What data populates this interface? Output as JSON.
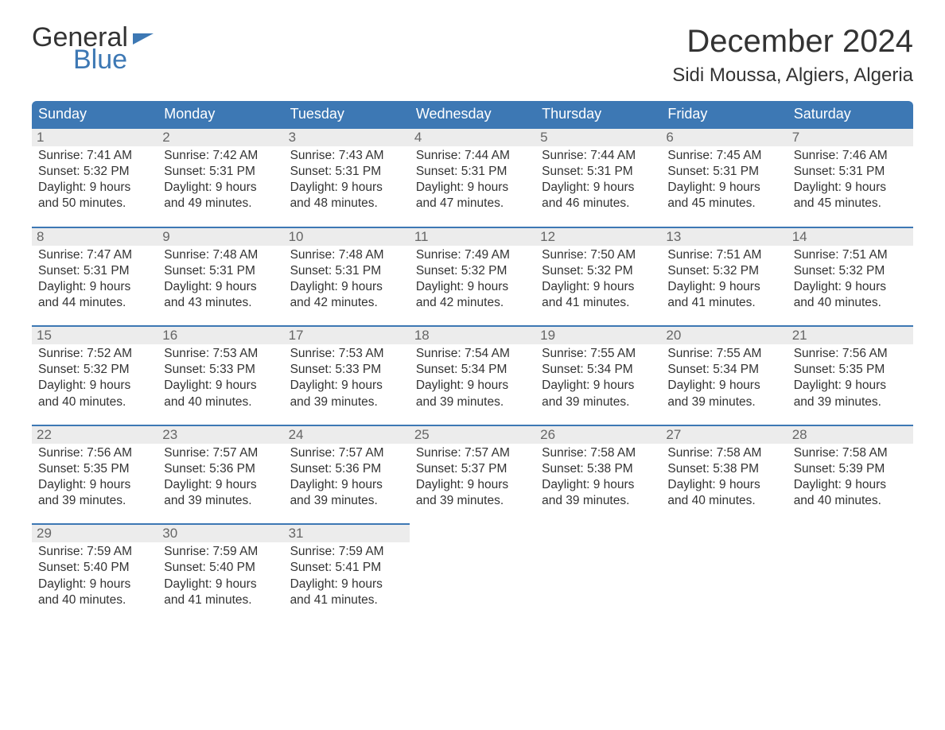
{
  "logo": {
    "word1": "General",
    "word2": "Blue"
  },
  "title": "December 2024",
  "location": "Sidi Moussa, Algiers, Algeria",
  "colors": {
    "header_bg": "#3d78b4",
    "header_text": "#ffffff",
    "daynum_bg": "#ececec",
    "daynum_border": "#3d78b4",
    "daynum_text": "#666666",
    "body_text": "#333333",
    "page_bg": "#ffffff"
  },
  "day_headers": [
    "Sunday",
    "Monday",
    "Tuesday",
    "Wednesday",
    "Thursday",
    "Friday",
    "Saturday"
  ],
  "weeks": [
    [
      {
        "n": "1",
        "sunrise": "Sunrise: 7:41 AM",
        "sunset": "Sunset: 5:32 PM",
        "dl1": "Daylight: 9 hours",
        "dl2": "and 50 minutes."
      },
      {
        "n": "2",
        "sunrise": "Sunrise: 7:42 AM",
        "sunset": "Sunset: 5:31 PM",
        "dl1": "Daylight: 9 hours",
        "dl2": "and 49 minutes."
      },
      {
        "n": "3",
        "sunrise": "Sunrise: 7:43 AM",
        "sunset": "Sunset: 5:31 PM",
        "dl1": "Daylight: 9 hours",
        "dl2": "and 48 minutes."
      },
      {
        "n": "4",
        "sunrise": "Sunrise: 7:44 AM",
        "sunset": "Sunset: 5:31 PM",
        "dl1": "Daylight: 9 hours",
        "dl2": "and 47 minutes."
      },
      {
        "n": "5",
        "sunrise": "Sunrise: 7:44 AM",
        "sunset": "Sunset: 5:31 PM",
        "dl1": "Daylight: 9 hours",
        "dl2": "and 46 minutes."
      },
      {
        "n": "6",
        "sunrise": "Sunrise: 7:45 AM",
        "sunset": "Sunset: 5:31 PM",
        "dl1": "Daylight: 9 hours",
        "dl2": "and 45 minutes."
      },
      {
        "n": "7",
        "sunrise": "Sunrise: 7:46 AM",
        "sunset": "Sunset: 5:31 PM",
        "dl1": "Daylight: 9 hours",
        "dl2": "and 45 minutes."
      }
    ],
    [
      {
        "n": "8",
        "sunrise": "Sunrise: 7:47 AM",
        "sunset": "Sunset: 5:31 PM",
        "dl1": "Daylight: 9 hours",
        "dl2": "and 44 minutes."
      },
      {
        "n": "9",
        "sunrise": "Sunrise: 7:48 AM",
        "sunset": "Sunset: 5:31 PM",
        "dl1": "Daylight: 9 hours",
        "dl2": "and 43 minutes."
      },
      {
        "n": "10",
        "sunrise": "Sunrise: 7:48 AM",
        "sunset": "Sunset: 5:31 PM",
        "dl1": "Daylight: 9 hours",
        "dl2": "and 42 minutes."
      },
      {
        "n": "11",
        "sunrise": "Sunrise: 7:49 AM",
        "sunset": "Sunset: 5:32 PM",
        "dl1": "Daylight: 9 hours",
        "dl2": "and 42 minutes."
      },
      {
        "n": "12",
        "sunrise": "Sunrise: 7:50 AM",
        "sunset": "Sunset: 5:32 PM",
        "dl1": "Daylight: 9 hours",
        "dl2": "and 41 minutes."
      },
      {
        "n": "13",
        "sunrise": "Sunrise: 7:51 AM",
        "sunset": "Sunset: 5:32 PM",
        "dl1": "Daylight: 9 hours",
        "dl2": "and 41 minutes."
      },
      {
        "n": "14",
        "sunrise": "Sunrise: 7:51 AM",
        "sunset": "Sunset: 5:32 PM",
        "dl1": "Daylight: 9 hours",
        "dl2": "and 40 minutes."
      }
    ],
    [
      {
        "n": "15",
        "sunrise": "Sunrise: 7:52 AM",
        "sunset": "Sunset: 5:32 PM",
        "dl1": "Daylight: 9 hours",
        "dl2": "and 40 minutes."
      },
      {
        "n": "16",
        "sunrise": "Sunrise: 7:53 AM",
        "sunset": "Sunset: 5:33 PM",
        "dl1": "Daylight: 9 hours",
        "dl2": "and 40 minutes."
      },
      {
        "n": "17",
        "sunrise": "Sunrise: 7:53 AM",
        "sunset": "Sunset: 5:33 PM",
        "dl1": "Daylight: 9 hours",
        "dl2": "and 39 minutes."
      },
      {
        "n": "18",
        "sunrise": "Sunrise: 7:54 AM",
        "sunset": "Sunset: 5:34 PM",
        "dl1": "Daylight: 9 hours",
        "dl2": "and 39 minutes."
      },
      {
        "n": "19",
        "sunrise": "Sunrise: 7:55 AM",
        "sunset": "Sunset: 5:34 PM",
        "dl1": "Daylight: 9 hours",
        "dl2": "and 39 minutes."
      },
      {
        "n": "20",
        "sunrise": "Sunrise: 7:55 AM",
        "sunset": "Sunset: 5:34 PM",
        "dl1": "Daylight: 9 hours",
        "dl2": "and 39 minutes."
      },
      {
        "n": "21",
        "sunrise": "Sunrise: 7:56 AM",
        "sunset": "Sunset: 5:35 PM",
        "dl1": "Daylight: 9 hours",
        "dl2": "and 39 minutes."
      }
    ],
    [
      {
        "n": "22",
        "sunrise": "Sunrise: 7:56 AM",
        "sunset": "Sunset: 5:35 PM",
        "dl1": "Daylight: 9 hours",
        "dl2": "and 39 minutes."
      },
      {
        "n": "23",
        "sunrise": "Sunrise: 7:57 AM",
        "sunset": "Sunset: 5:36 PM",
        "dl1": "Daylight: 9 hours",
        "dl2": "and 39 minutes."
      },
      {
        "n": "24",
        "sunrise": "Sunrise: 7:57 AM",
        "sunset": "Sunset: 5:36 PM",
        "dl1": "Daylight: 9 hours",
        "dl2": "and 39 minutes."
      },
      {
        "n": "25",
        "sunrise": "Sunrise: 7:57 AM",
        "sunset": "Sunset: 5:37 PM",
        "dl1": "Daylight: 9 hours",
        "dl2": "and 39 minutes."
      },
      {
        "n": "26",
        "sunrise": "Sunrise: 7:58 AM",
        "sunset": "Sunset: 5:38 PM",
        "dl1": "Daylight: 9 hours",
        "dl2": "and 39 minutes."
      },
      {
        "n": "27",
        "sunrise": "Sunrise: 7:58 AM",
        "sunset": "Sunset: 5:38 PM",
        "dl1": "Daylight: 9 hours",
        "dl2": "and 40 minutes."
      },
      {
        "n": "28",
        "sunrise": "Sunrise: 7:58 AM",
        "sunset": "Sunset: 5:39 PM",
        "dl1": "Daylight: 9 hours",
        "dl2": "and 40 minutes."
      }
    ],
    [
      {
        "n": "29",
        "sunrise": "Sunrise: 7:59 AM",
        "sunset": "Sunset: 5:40 PM",
        "dl1": "Daylight: 9 hours",
        "dl2": "and 40 minutes."
      },
      {
        "n": "30",
        "sunrise": "Sunrise: 7:59 AM",
        "sunset": "Sunset: 5:40 PM",
        "dl1": "Daylight: 9 hours",
        "dl2": "and 41 minutes."
      },
      {
        "n": "31",
        "sunrise": "Sunrise: 7:59 AM",
        "sunset": "Sunset: 5:41 PM",
        "dl1": "Daylight: 9 hours",
        "dl2": "and 41 minutes."
      },
      null,
      null,
      null,
      null
    ]
  ]
}
